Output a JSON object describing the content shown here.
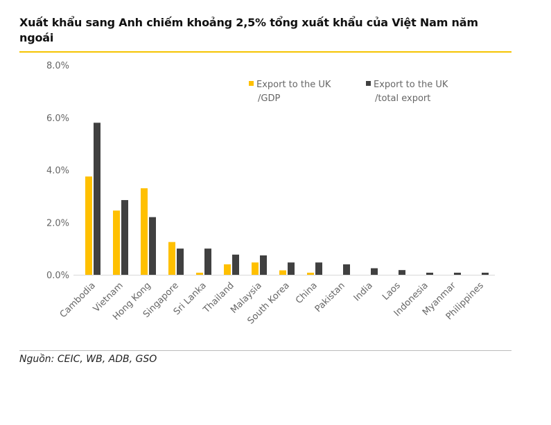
{
  "header": {
    "title": "Xuất khẩu sang Anh chiếm khoảng 2,5% tổng xuất khẩu của Việt Nam năm ngoái"
  },
  "footer": {
    "source": "Nguồn: CEIC, WB, ADB, GSO"
  },
  "colors": {
    "gdp": "#ffc000",
    "total": "#404040",
    "accent": "#f5c400"
  },
  "chart_data": {
    "type": "bar",
    "title": "Xuất khẩu sang Anh chiếm khoảng 2,5% tổng xuất khẩu của Việt Nam năm ngoái",
    "xlabel": "",
    "ylabel": "",
    "ylim": [
      0,
      8
    ],
    "yticks": [
      "0.0%",
      "2.0%",
      "4.0%",
      "6.0%",
      "8.0%"
    ],
    "legend_position": "top-right",
    "categories": [
      "Cambodia",
      "Vietnam",
      "Hong Kong",
      "Singapore",
      "Sri Lanka",
      "Thailand",
      "Malaysia",
      "South Korea",
      "China",
      "Pakistan",
      "India",
      "Laos",
      "Indonesia",
      "Myanmar",
      "Philippines"
    ],
    "series": [
      {
        "name": "Export to the UK /GDP",
        "legend_lines": [
          "Export to the UK",
          "/GDP"
        ],
        "values": [
          3.75,
          2.45,
          3.3,
          1.25,
          0.08,
          0.4,
          0.47,
          0.17,
          0.08,
          0,
          0,
          0,
          0,
          0,
          0
        ]
      },
      {
        "name": "Export to the UK /total export",
        "legend_lines": [
          "Export to the UK",
          "/total export"
        ],
        "values": [
          5.8,
          2.85,
          2.2,
          1.0,
          1.0,
          0.77,
          0.74,
          0.47,
          0.47,
          0.4,
          0.25,
          0.18,
          0.08,
          0.08,
          0.08
        ]
      }
    ]
  }
}
